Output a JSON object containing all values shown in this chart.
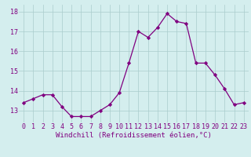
{
  "hours": [
    0,
    1,
    2,
    3,
    4,
    5,
    6,
    7,
    8,
    9,
    10,
    11,
    12,
    13,
    14,
    15,
    16,
    17,
    18,
    19,
    20,
    21,
    22,
    23
  ],
  "values": [
    13.4,
    13.6,
    13.8,
    13.8,
    13.2,
    12.7,
    12.7,
    12.7,
    13.0,
    13.3,
    13.9,
    15.4,
    17.0,
    16.7,
    17.2,
    17.9,
    17.5,
    17.4,
    15.4,
    15.4,
    14.8,
    14.1,
    13.3,
    13.4
  ],
  "line_color": "#800080",
  "marker": "D",
  "marker_size": 2.2,
  "bg_color": "#d4eeee",
  "grid_color": "#aacccc",
  "xlabel": "Windchill (Refroidissement éolien,°C)",
  "xlabel_color": "#800080",
  "xlabel_fontsize": 6.5,
  "tick_color": "#800080",
  "tick_fontsize": 6.0,
  "ylim": [
    12.4,
    18.35
  ],
  "yticks": [
    13,
    14,
    15,
    16,
    17,
    18
  ],
  "xticks": [
    0,
    1,
    2,
    3,
    4,
    5,
    6,
    7,
    8,
    9,
    10,
    11,
    12,
    13,
    14,
    15,
    16,
    17,
    18,
    19,
    20,
    21,
    22,
    23
  ]
}
